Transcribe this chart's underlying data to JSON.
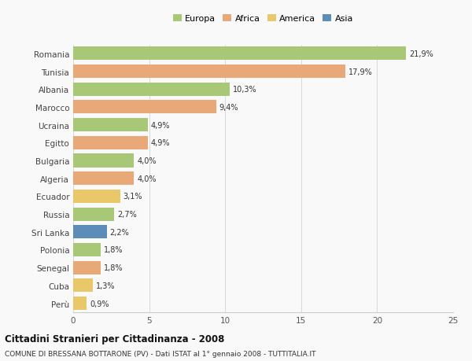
{
  "countries": [
    "Romania",
    "Tunisia",
    "Albania",
    "Marocco",
    "Ucraina",
    "Egitto",
    "Bulgaria",
    "Algeria",
    "Ecuador",
    "Russia",
    "Sri Lanka",
    "Polonia",
    "Senegal",
    "Cuba",
    "Perù"
  ],
  "values": [
    21.9,
    17.9,
    10.3,
    9.4,
    4.9,
    4.9,
    4.0,
    4.0,
    3.1,
    2.7,
    2.2,
    1.8,
    1.8,
    1.3,
    0.9
  ],
  "labels": [
    "21,9%",
    "17,9%",
    "10,3%",
    "9,4%",
    "4,9%",
    "4,9%",
    "4,0%",
    "4,0%",
    "3,1%",
    "2,7%",
    "2,2%",
    "1,8%",
    "1,8%",
    "1,3%",
    "0,9%"
  ],
  "colors": [
    "#a8c878",
    "#e8a878",
    "#a8c878",
    "#e8a878",
    "#a8c878",
    "#e8a878",
    "#a8c878",
    "#e8a878",
    "#e8c868",
    "#a8c878",
    "#5b8db8",
    "#a8c878",
    "#e8a878",
    "#e8c868",
    "#e8c868"
  ],
  "legend_labels": [
    "Europa",
    "Africa",
    "America",
    "Asia"
  ],
  "legend_colors": [
    "#a8c878",
    "#e8a878",
    "#e8c868",
    "#5b8db8"
  ],
  "title1": "Cittadini Stranieri per Cittadinanza - 2008",
  "title2": "COMUNE DI BRESSANA BOTTARONE (PV) - Dati ISTAT al 1° gennaio 2008 - TUTTITALIA.IT",
  "xlim": [
    0,
    25
  ],
  "xticks": [
    0,
    5,
    10,
    15,
    20,
    25
  ],
  "background_color": "#f9f9f9",
  "bar_height": 0.75
}
